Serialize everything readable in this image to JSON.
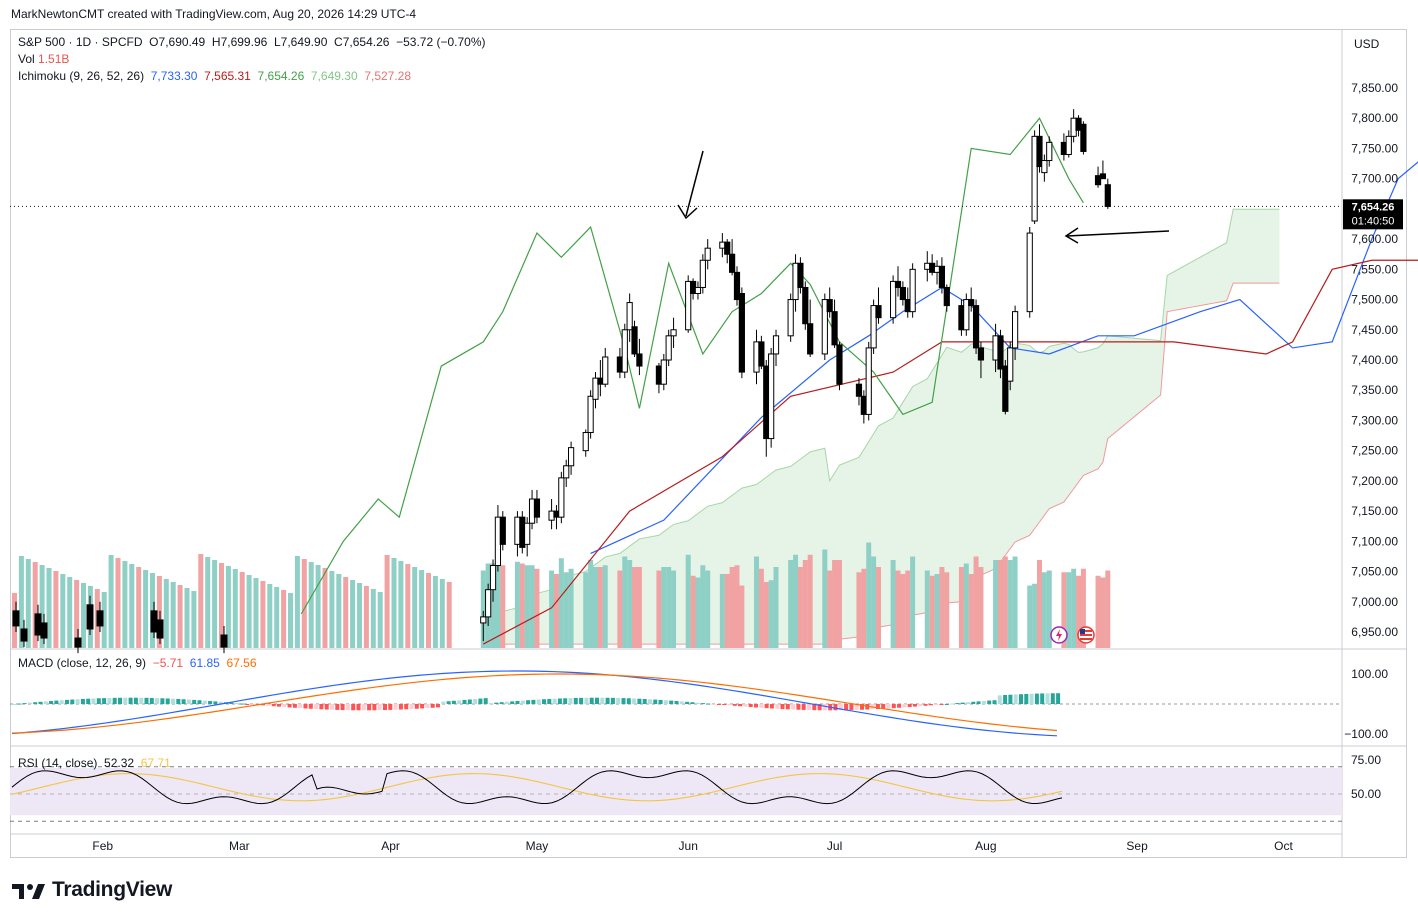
{
  "header": {
    "attribution": "MarkNewtonCMT created with TradingView.com, Aug 20, 2026 14:29 UTC-4"
  },
  "legend": {
    "symbol": "S&P 500 · 1D · SPCFD",
    "open_label": "O",
    "open": "7,690.49",
    "high_label": "H",
    "high": "7,699.96",
    "low_label": "L",
    "low": "7,649.90",
    "close_label": "C",
    "close": "7,654.26",
    "change": "−53.72 (−0.70%)",
    "vol_label": "Vol",
    "vol": "1.51B",
    "ichimoku_label": "Ichimoku (9, 26, 52, 26)",
    "ichimoku_values": [
      "7,733.30",
      "7,565.31",
      "7,654.26",
      "7,649.30",
      "7,527.28"
    ],
    "macd_label": "MACD (close, 12, 26, 9)",
    "macd_values": [
      "−5.71",
      "61.85",
      "67.56"
    ],
    "rsi_label": "RSI (14, close)",
    "rsi_values": [
      "52.32",
      "67.71"
    ]
  },
  "currency": "USD",
  "price_tag": {
    "price": "7,654.26",
    "countdown": "01:40:50"
  },
  "price_axis": [
    "7,850.00",
    "7,800.00",
    "7,750.00",
    "7,700.00",
    "7,600.00",
    "7,550.00",
    "7,500.00",
    "7,450.00",
    "7,400.00",
    "7,350.00",
    "7,300.00",
    "7,250.00",
    "7,200.00",
    "7,150.00",
    "7,100.00",
    "7,050.00",
    "7,000.00",
    "6,950.00"
  ],
  "macd_axis": [
    "100.00",
    "−100.00"
  ],
  "rsi_axis": [
    "75.00",
    "50.00"
  ],
  "time_axis": [
    "Feb",
    "Mar",
    "Apr",
    "May",
    "Jun",
    "Jul",
    "Aug",
    "Sep",
    "Oct"
  ],
  "brand": "TradingView",
  "colors": {
    "up": "#ffffff",
    "down": "#000000",
    "vol_up": "#8fd0c6",
    "vol_down": "#f1a3a3",
    "tenkan": "#2962ff",
    "kijun": "#b71c1c",
    "lagging": "#43a047",
    "span_a": "#a5d6a7",
    "span_b": "#ef9a9a",
    "macd_line": "#2962ff",
    "signal_line": "#ff6d00",
    "rsi_line": "#000000",
    "rsi_ma": "#f4c542",
    "rsi_band": "#ede7f6"
  },
  "chart_data": {
    "type": "candlestick",
    "title": "S&P 500 · 1D · SPCFD",
    "ylim": [
      6920,
      7880
    ],
    "xlim": [
      "2026-01-13",
      "2026-10-13"
    ],
    "annotations": [
      "arrow pointing to June 1 high",
      "arrow pointing to current price / tenkan"
    ],
    "candles": [
      {
        "d": "2026-04-20",
        "o": 6965,
        "h": 6985,
        "l": 6935,
        "c": 6975
      },
      {
        "d": "2026-04-21",
        "o": 6975,
        "h": 7030,
        "l": 6960,
        "c": 7020
      },
      {
        "d": "2026-04-22",
        "o": 7020,
        "h": 7070,
        "l": 7000,
        "c": 7060
      },
      {
        "d": "2026-04-23",
        "o": 7060,
        "h": 7160,
        "l": 7050,
        "c": 7140
      },
      {
        "d": "2026-04-24",
        "o": 7140,
        "h": 7150,
        "l": 7085,
        "c": 7095
      },
      {
        "d": "2026-04-27",
        "o": 7095,
        "h": 7150,
        "l": 7075,
        "c": 7140
      },
      {
        "d": "2026-04-28",
        "o": 7140,
        "h": 7150,
        "l": 7080,
        "c": 7090
      },
      {
        "d": "2026-04-29",
        "o": 7095,
        "h": 7140,
        "l": 7075,
        "c": 7130
      },
      {
        "d": "2026-04-30",
        "o": 7130,
        "h": 7185,
        "l": 7120,
        "c": 7170
      },
      {
        "d": "2026-05-01",
        "o": 7170,
        "h": 7185,
        "l": 7130,
        "c": 7140
      },
      {
        "d": "2026-05-04",
        "o": 7135,
        "h": 7170,
        "l": 7120,
        "c": 7150
      },
      {
        "d": "2026-05-05",
        "o": 7150,
        "h": 7160,
        "l": 7120,
        "c": 7140
      },
      {
        "d": "2026-05-06",
        "o": 7140,
        "h": 7215,
        "l": 7130,
        "c": 7205
      },
      {
        "d": "2026-05-07",
        "o": 7205,
        "h": 7235,
        "l": 7190,
        "c": 7225
      },
      {
        "d": "2026-05-08",
        "o": 7225,
        "h": 7265,
        "l": 7210,
        "c": 7255
      },
      {
        "d": "2026-05-11",
        "o": 7250,
        "h": 7285,
        "l": 7240,
        "c": 7280
      },
      {
        "d": "2026-05-12",
        "o": 7280,
        "h": 7350,
        "l": 7270,
        "c": 7340
      },
      {
        "d": "2026-05-13",
        "o": 7335,
        "h": 7380,
        "l": 7320,
        "c": 7370
      },
      {
        "d": "2026-05-14",
        "o": 7370,
        "h": 7400,
        "l": 7340,
        "c": 7360
      },
      {
        "d": "2026-05-15",
        "o": 7360,
        "h": 7420,
        "l": 7355,
        "c": 7405
      },
      {
        "d": "2026-05-18",
        "o": 7405,
        "h": 7420,
        "l": 7370,
        "c": 7380
      },
      {
        "d": "2026-05-19",
        "o": 7380,
        "h": 7460,
        "l": 7370,
        "c": 7450
      },
      {
        "d": "2026-05-20",
        "o": 7450,
        "h": 7510,
        "l": 7430,
        "c": 7495
      },
      {
        "d": "2026-05-21",
        "o": 7455,
        "h": 7465,
        "l": 7405,
        "c": 7410
      },
      {
        "d": "2026-05-22",
        "o": 7410,
        "h": 7435,
        "l": 7375,
        "c": 7390
      },
      {
        "d": "2026-05-26",
        "o": 7390,
        "h": 7395,
        "l": 7345,
        "c": 7360
      },
      {
        "d": "2026-05-27",
        "o": 7360,
        "h": 7410,
        "l": 7350,
        "c": 7400
      },
      {
        "d": "2026-05-28",
        "o": 7400,
        "h": 7450,
        "l": 7390,
        "c": 7440
      },
      {
        "d": "2026-05-29",
        "o": 7440,
        "h": 7470,
        "l": 7420,
        "c": 7450
      },
      {
        "d": "2026-06-01",
        "o": 7450,
        "h": 7540,
        "l": 7445,
        "c": 7530
      },
      {
        "d": "2026-06-02",
        "o": 7530,
        "h": 7535,
        "l": 7500,
        "c": 7510
      },
      {
        "d": "2026-06-03",
        "o": 7510,
        "h": 7530,
        "l": 7500,
        "c": 7520
      },
      {
        "d": "2026-06-04",
        "o": 7520,
        "h": 7575,
        "l": 7510,
        "c": 7565
      },
      {
        "d": "2026-06-05",
        "o": 7565,
        "h": 7600,
        "l": 7550,
        "c": 7585
      },
      {
        "d": "2026-06-08",
        "o": 7585,
        "h": 7610,
        "l": 7570,
        "c": 7595
      },
      {
        "d": "2026-06-09",
        "o": 7595,
        "h": 7600,
        "l": 7560,
        "c": 7575
      },
      {
        "d": "2026-06-10",
        "o": 7575,
        "h": 7600,
        "l": 7540,
        "c": 7545
      },
      {
        "d": "2026-06-11",
        "o": 7545,
        "h": 7555,
        "l": 7490,
        "c": 7500
      },
      {
        "d": "2026-06-12",
        "o": 7510,
        "h": 7520,
        "l": 7370,
        "c": 7380
      },
      {
        "d": "2026-06-15",
        "o": 7380,
        "h": 7450,
        "l": 7360,
        "c": 7430
      },
      {
        "d": "2026-06-16",
        "o": 7430,
        "h": 7440,
        "l": 7385,
        "c": 7390
      },
      {
        "d": "2026-06-17",
        "o": 7390,
        "h": 7400,
        "l": 7240,
        "c": 7270
      },
      {
        "d": "2026-06-18",
        "o": 7270,
        "h": 7420,
        "l": 7255,
        "c": 7410
      },
      {
        "d": "2026-06-19",
        "o": 7410,
        "h": 7450,
        "l": 7390,
        "c": 7440
      },
      {
        "d": "2026-06-22",
        "o": 7440,
        "h": 7510,
        "l": 7430,
        "c": 7500
      },
      {
        "d": "2026-06-23",
        "o": 7500,
        "h": 7575,
        "l": 7480,
        "c": 7560
      },
      {
        "d": "2026-06-24",
        "o": 7560,
        "h": 7570,
        "l": 7510,
        "c": 7520
      },
      {
        "d": "2026-06-25",
        "o": 7520,
        "h": 7530,
        "l": 7450,
        "c": 7460
      },
      {
        "d": "2026-06-26",
        "o": 7460,
        "h": 7500,
        "l": 7405,
        "c": 7410
      },
      {
        "d": "2026-06-29",
        "o": 7410,
        "h": 7510,
        "l": 7400,
        "c": 7500
      },
      {
        "d": "2026-06-30",
        "o": 7500,
        "h": 7520,
        "l": 7470,
        "c": 7480
      },
      {
        "d": "2026-07-01",
        "o": 7480,
        "h": 7500,
        "l": 7420,
        "c": 7425
      },
      {
        "d": "2026-07-02",
        "o": 7425,
        "h": 7430,
        "l": 7350,
        "c": 7360
      },
      {
        "d": "2026-07-06",
        "o": 7360,
        "h": 7370,
        "l": 7325,
        "c": 7340
      },
      {
        "d": "2026-07-07",
        "o": 7340,
        "h": 7350,
        "l": 7295,
        "c": 7310
      },
      {
        "d": "2026-07-08",
        "o": 7310,
        "h": 7430,
        "l": 7300,
        "c": 7420
      },
      {
        "d": "2026-07-09",
        "o": 7420,
        "h": 7500,
        "l": 7410,
        "c": 7490
      },
      {
        "d": "2026-07-10",
        "o": 7490,
        "h": 7520,
        "l": 7460,
        "c": 7470
      },
      {
        "d": "2026-07-13",
        "o": 7470,
        "h": 7540,
        "l": 7460,
        "c": 7530
      },
      {
        "d": "2026-07-14",
        "o": 7530,
        "h": 7555,
        "l": 7505,
        "c": 7520
      },
      {
        "d": "2026-07-15",
        "o": 7520,
        "h": 7530,
        "l": 7490,
        "c": 7500
      },
      {
        "d": "2026-07-16",
        "o": 7500,
        "h": 7520,
        "l": 7470,
        "c": 7480
      },
      {
        "d": "2026-07-17",
        "o": 7480,
        "h": 7560,
        "l": 7470,
        "c": 7550
      },
      {
        "d": "2026-07-20",
        "o": 7550,
        "h": 7580,
        "l": 7530,
        "c": 7560
      },
      {
        "d": "2026-07-21",
        "o": 7560,
        "h": 7575,
        "l": 7540,
        "c": 7545
      },
      {
        "d": "2026-07-22",
        "o": 7545,
        "h": 7565,
        "l": 7525,
        "c": 7555
      },
      {
        "d": "2026-07-23",
        "o": 7555,
        "h": 7570,
        "l": 7510,
        "c": 7520
      },
      {
        "d": "2026-07-24",
        "o": 7520,
        "h": 7525,
        "l": 7480,
        "c": 7490
      },
      {
        "d": "2026-07-27",
        "o": 7490,
        "h": 7500,
        "l": 7440,
        "c": 7450
      },
      {
        "d": "2026-07-28",
        "o": 7450,
        "h": 7510,
        "l": 7440,
        "c": 7500
      },
      {
        "d": "2026-07-29",
        "o": 7500,
        "h": 7520,
        "l": 7480,
        "c": 7490
      },
      {
        "d": "2026-07-30",
        "o": 7490,
        "h": 7500,
        "l": 7410,
        "c": 7420
      },
      {
        "d": "2026-07-31",
        "o": 7420,
        "h": 7430,
        "l": 7370,
        "c": 7400
      },
      {
        "d": "2026-08-03",
        "o": 7400,
        "h": 7460,
        "l": 7380,
        "c": 7440
      },
      {
        "d": "2026-08-04",
        "o": 7440,
        "h": 7450,
        "l": 7370,
        "c": 7385
      },
      {
        "d": "2026-08-05",
        "o": 7390,
        "h": 7400,
        "l": 7310,
        "c": 7315
      },
      {
        "d": "2026-08-06",
        "o": 7365,
        "h": 7430,
        "l": 7350,
        "c": 7420
      },
      {
        "d": "2026-08-07",
        "o": 7420,
        "h": 7490,
        "l": 7400,
        "c": 7480
      },
      {
        "d": "2026-08-10",
        "o": 7480,
        "h": 7620,
        "l": 7470,
        "c": 7610
      },
      {
        "d": "2026-08-11",
        "o": 7630,
        "h": 7780,
        "l": 7625,
        "c": 7770
      },
      {
        "d": "2026-08-12",
        "o": 7770,
        "h": 7790,
        "l": 7710,
        "c": 7720
      },
      {
        "d": "2026-08-13",
        "o": 7710,
        "h": 7740,
        "l": 7695,
        "c": 7730
      },
      {
        "d": "2026-08-14",
        "o": 7730,
        "h": 7770,
        "l": 7720,
        "c": 7760
      },
      {
        "d": "2026-08-17",
        "o": 7760,
        "h": 7775,
        "l": 7730,
        "c": 7740
      },
      {
        "d": "2026-08-18",
        "o": 7740,
        "h": 7780,
        "l": 7735,
        "c": 7770
      },
      {
        "d": "2026-08-19",
        "o": 7770,
        "h": 7815,
        "l": 7760,
        "c": 7800
      },
      {
        "d": "2026-08-20",
        "o": 7800,
        "h": 7805,
        "l": 7770,
        "c": 7780
      },
      {
        "d": "2026-08-21",
        "o": 7790,
        "h": 7795,
        "l": 7740,
        "c": 7745
      },
      {
        "d": "2026-08-24",
        "o": 7705,
        "h": 7720,
        "l": 7685,
        "c": 7690
      },
      {
        "d": "2026-08-25",
        "o": 7708,
        "h": 7730,
        "l": 7700,
        "c": 7700
      },
      {
        "d": "2026-08-26",
        "o": 7690,
        "h": 7700,
        "l": 7650,
        "c": 7654
      }
    ],
    "series": [
      {
        "name": "Tenkan",
        "points": [
          [
            16,
            7080
          ],
          [
            26,
            7135
          ],
          [
            40,
            7305
          ],
          [
            50,
            7400
          ],
          [
            55,
            7440
          ],
          [
            60,
            7480
          ],
          [
            66,
            7520
          ],
          [
            70,
            7490
          ],
          [
            76,
            7420
          ],
          [
            82,
            7410
          ],
          [
            88,
            7440
          ],
          [
            94,
            7440
          ],
          [
            104,
            7480
          ],
          [
            110,
            7500
          ],
          [
            118,
            7420
          ],
          [
            124,
            7430
          ],
          [
            130,
            7600
          ],
          [
            134,
            7700
          ],
          [
            140,
            7755
          ],
          [
            144,
            7730
          ]
        ]
      },
      {
        "name": "Kijun",
        "points": [
          [
            0,
            6930
          ],
          [
            10,
            6990
          ],
          [
            22,
            7150
          ],
          [
            34,
            7240
          ],
          [
            44,
            7340
          ],
          [
            58,
            7380
          ],
          [
            66,
            7430
          ],
          [
            90,
            7430
          ],
          [
            100,
            7430
          ],
          [
            114,
            7410
          ],
          [
            118,
            7430
          ],
          [
            124,
            7550
          ],
          [
            130,
            7565
          ],
          [
            140,
            7565
          ]
        ]
      },
      {
        "name": "Chikou",
        "points": [
          [
            -26,
            6980
          ],
          [
            -20,
            7100
          ],
          [
            -15,
            7170
          ],
          [
            -12,
            7140
          ],
          [
            -6,
            7390
          ],
          [
            0,
            7430
          ],
          [
            4,
            7480
          ],
          [
            9,
            7610
          ],
          [
            12,
            7570
          ],
          [
            16,
            7620
          ],
          [
            21,
            7420
          ],
          [
            24,
            7320
          ],
          [
            27,
            7560
          ],
          [
            32,
            7410
          ],
          [
            36,
            7480
          ],
          [
            40,
            7510
          ],
          [
            44,
            7560
          ],
          [
            48,
            7525
          ],
          [
            52,
            7430
          ],
          [
            56,
            7380
          ],
          [
            60,
            7310
          ],
          [
            64,
            7330
          ],
          [
            70,
            7750
          ],
          [
            76,
            7740
          ],
          [
            80,
            7800
          ],
          [
            84,
            7700
          ],
          [
            87,
            7660
          ]
        ]
      }
    ],
    "cloud": {
      "span_a_end": 7649.3,
      "span_b_end": 7527.28
    },
    "volume_unit": "B",
    "macd": {
      "macd": -5.71,
      "signal": 61.85,
      "histogram": 67.56
    },
    "rsi": {
      "value": 52.32,
      "ma": 67.71
    }
  }
}
